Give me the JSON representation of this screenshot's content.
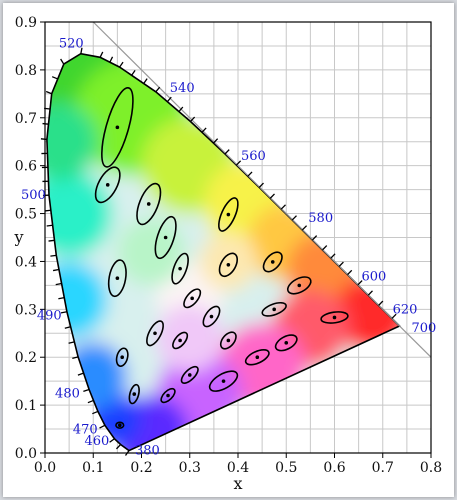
{
  "chart_data": {
    "type": "scatter",
    "xlabel": "x",
    "ylabel": "y",
    "xlim": [
      0,
      0.8
    ],
    "ylim": [
      0,
      0.9
    ],
    "grid": true,
    "x_ticks": [
      "0.0",
      "0.1",
      "0.2",
      "0.3",
      "0.4",
      "0.5",
      "0.6",
      "0.7",
      "0.8"
    ],
    "y_ticks": [
      "0.0",
      "0.1",
      "0.2",
      "0.3",
      "0.4",
      "0.5",
      "0.6",
      "0.7",
      "0.8",
      "0.9"
    ],
    "locus_points": [
      {
        "wl": 380,
        "x": 0.1741,
        "y": 0.005
      },
      {
        "wl": 450,
        "x": 0.1566,
        "y": 0.0177
      },
      {
        "wl": 460,
        "x": 0.144,
        "y": 0.0297
      },
      {
        "wl": 470,
        "x": 0.1241,
        "y": 0.0578
      },
      {
        "wl": 475,
        "x": 0.1096,
        "y": 0.0868
      },
      {
        "wl": 480,
        "x": 0.0913,
        "y": 0.1327
      },
      {
        "wl": 485,
        "x": 0.0687,
        "y": 0.2007
      },
      {
        "wl": 490,
        "x": 0.0454,
        "y": 0.295
      },
      {
        "wl": 495,
        "x": 0.0235,
        "y": 0.4127
      },
      {
        "wl": 500,
        "x": 0.0082,
        "y": 0.5384
      },
      {
        "wl": 505,
        "x": 0.0039,
        "y": 0.6548
      },
      {
        "wl": 510,
        "x": 0.0139,
        "y": 0.7502
      },
      {
        "wl": 515,
        "x": 0.0389,
        "y": 0.812
      },
      {
        "wl": 520,
        "x": 0.0743,
        "y": 0.8338
      },
      {
        "wl": 525,
        "x": 0.1142,
        "y": 0.8262
      },
      {
        "wl": 530,
        "x": 0.1547,
        "y": 0.8059
      },
      {
        "wl": 540,
        "x": 0.2296,
        "y": 0.7543
      },
      {
        "wl": 550,
        "x": 0.3016,
        "y": 0.6923
      },
      {
        "wl": 560,
        "x": 0.3731,
        "y": 0.6245
      },
      {
        "wl": 570,
        "x": 0.4441,
        "y": 0.5547
      },
      {
        "wl": 580,
        "x": 0.5125,
        "y": 0.4866
      },
      {
        "wl": 590,
        "x": 0.5752,
        "y": 0.4242
      },
      {
        "wl": 600,
        "x": 0.627,
        "y": 0.3725
      },
      {
        "wl": 620,
        "x": 0.6915,
        "y": 0.3083
      },
      {
        "wl": 640,
        "x": 0.719,
        "y": 0.2809
      },
      {
        "wl": 700,
        "x": 0.7347,
        "y": 0.2653
      }
    ],
    "wavelength_labels": [
      {
        "text": "520",
        "wl": 520
      },
      {
        "text": "540",
        "wl": 540
      },
      {
        "text": "560",
        "wl": 560
      },
      {
        "text": "580",
        "wl": 580
      },
      {
        "text": "600",
        "wl": 600
      },
      {
        "text": "620",
        "wl": 620
      },
      {
        "text": "700",
        "wl": 700
      },
      {
        "text": "500",
        "wl": 500
      },
      {
        "text": "490",
        "wl": 490
      },
      {
        "text": "480",
        "wl": 480
      },
      {
        "text": "470",
        "wl": 470
      },
      {
        "text": "460",
        "wl": 460
      },
      {
        "text": "380",
        "wl": 380
      }
    ],
    "ellipses": [
      {
        "x": 0.15,
        "y": 0.68,
        "a": 0.085,
        "b": 0.023,
        "angle": 74
      },
      {
        "x": 0.13,
        "y": 0.56,
        "a": 0.04,
        "b": 0.019,
        "angle": 62
      },
      {
        "x": 0.215,
        "y": 0.52,
        "a": 0.045,
        "b": 0.019,
        "angle": 68
      },
      {
        "x": 0.25,
        "y": 0.45,
        "a": 0.045,
        "b": 0.017,
        "angle": 72
      },
      {
        "x": 0.15,
        "y": 0.365,
        "a": 0.038,
        "b": 0.017,
        "angle": 80
      },
      {
        "x": 0.28,
        "y": 0.385,
        "a": 0.033,
        "b": 0.013,
        "angle": 70
      },
      {
        "x": 0.38,
        "y": 0.498,
        "a": 0.037,
        "b": 0.014,
        "angle": 66
      },
      {
        "x": 0.38,
        "y": 0.393,
        "a": 0.026,
        "b": 0.015,
        "angle": 60
      },
      {
        "x": 0.472,
        "y": 0.399,
        "a": 0.024,
        "b": 0.014,
        "angle": 48
      },
      {
        "x": 0.527,
        "y": 0.35,
        "a": 0.026,
        "b": 0.014,
        "angle": 28
      },
      {
        "x": 0.475,
        "y": 0.3,
        "a": 0.026,
        "b": 0.011,
        "angle": 20
      },
      {
        "x": 0.6,
        "y": 0.283,
        "a": 0.028,
        "b": 0.011,
        "angle": 8
      },
      {
        "x": 0.305,
        "y": 0.323,
        "a": 0.023,
        "b": 0.011,
        "angle": 50
      },
      {
        "x": 0.345,
        "y": 0.285,
        "a": 0.024,
        "b": 0.012,
        "angle": 55
      },
      {
        "x": 0.228,
        "y": 0.25,
        "a": 0.028,
        "b": 0.012,
        "angle": 62
      },
      {
        "x": 0.28,
        "y": 0.235,
        "a": 0.02,
        "b": 0.01,
        "angle": 50
      },
      {
        "x": 0.38,
        "y": 0.235,
        "a": 0.02,
        "b": 0.012,
        "angle": 50
      },
      {
        "x": 0.5,
        "y": 0.23,
        "a": 0.024,
        "b": 0.013,
        "angle": 28
      },
      {
        "x": 0.16,
        "y": 0.2,
        "a": 0.019,
        "b": 0.011,
        "angle": 75
      },
      {
        "x": 0.44,
        "y": 0.2,
        "a": 0.026,
        "b": 0.012,
        "angle": 25
      },
      {
        "x": 0.3,
        "y": 0.163,
        "a": 0.022,
        "b": 0.01,
        "angle": 45
      },
      {
        "x": 0.37,
        "y": 0.15,
        "a": 0.032,
        "b": 0.015,
        "angle": 30
      },
      {
        "x": 0.185,
        "y": 0.123,
        "a": 0.02,
        "b": 0.009,
        "angle": 75
      },
      {
        "x": 0.255,
        "y": 0.12,
        "a": 0.018,
        "b": 0.009,
        "angle": 45
      },
      {
        "x": 0.155,
        "y": 0.058,
        "a": 0.008,
        "b": 0.006,
        "angle": 0
      }
    ]
  }
}
